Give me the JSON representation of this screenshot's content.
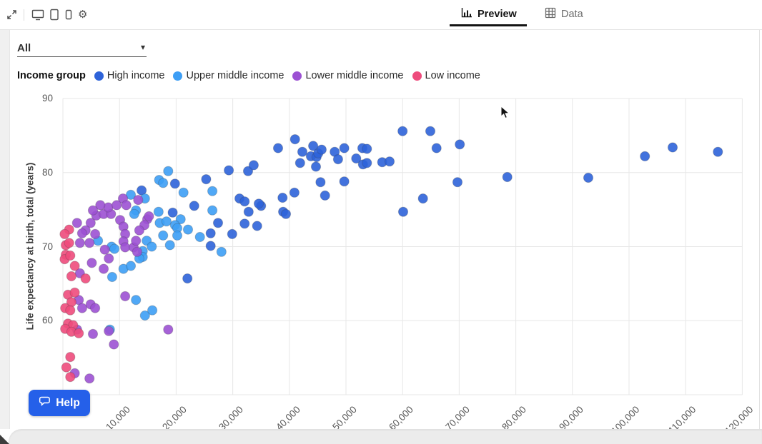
{
  "toolbar": {
    "icons": [
      {
        "name": "expand-icon"
      },
      {
        "name": "desktop-preview-icon"
      },
      {
        "name": "tablet-preview-icon"
      },
      {
        "name": "mobile-preview-icon"
      },
      {
        "name": "settings-gear-icon"
      }
    ],
    "tabs": {
      "preview": {
        "label": "Preview",
        "active": true
      },
      "data": {
        "label": "Data",
        "active": false
      }
    }
  },
  "filter": {
    "value": "All"
  },
  "legend": {
    "title": "Income group",
    "items": [
      {
        "label": "High income",
        "color": "#2e63d9"
      },
      {
        "label": "Upper middle income",
        "color": "#3d9ef5"
      },
      {
        "label": "Lower middle income",
        "color": "#9c51d3"
      },
      {
        "label": "Low income",
        "color": "#ee4b7c"
      }
    ]
  },
  "help": {
    "label": "Help"
  },
  "chart_data": {
    "type": "scatter",
    "title": "",
    "xlabel": "",
    "ylabel": "Life expectancy at birth, total (years)",
    "xlim": [
      0,
      120000
    ],
    "ylim": [
      50,
      90
    ],
    "x_grid_step": 10000,
    "y_grid_step": 10,
    "grid": true,
    "legend_position": "top",
    "x_tick_labels": [
      {
        "value": 10000,
        "label": "10,000"
      },
      {
        "value": 20000,
        "label": "20,000"
      },
      {
        "value": 30000,
        "label": "30,000"
      },
      {
        "value": 40000,
        "label": "40,000"
      },
      {
        "value": 50000,
        "label": "50,000"
      },
      {
        "value": 60000,
        "label": "60,000"
      },
      {
        "value": 70000,
        "label": "70,000"
      },
      {
        "value": 80000,
        "label": "80,000"
      },
      {
        "value": 90000,
        "label": "90,000"
      },
      {
        "value": 100000,
        "label": "100,000"
      },
      {
        "value": 110000,
        "label": "110,000"
      },
      {
        "value": 120000,
        "label": "120,000"
      }
    ],
    "y_tick_labels": [
      {
        "value": 90,
        "label": "90"
      },
      {
        "value": 80,
        "label": "80"
      },
      {
        "value": 70,
        "label": "70"
      },
      {
        "value": 60,
        "label": "60"
      }
    ],
    "series": [
      {
        "name": "High income",
        "color": "#2e63d9",
        "points": [
          [
            78500,
            79.4
          ],
          [
            92800,
            79.3
          ],
          [
            102800,
            82.2
          ],
          [
            107700,
            83.4
          ],
          [
            115700,
            82.8
          ],
          [
            32700,
            80.2
          ],
          [
            33700,
            81.0
          ],
          [
            38000,
            83.3
          ],
          [
            41000,
            84.5
          ],
          [
            42300,
            82.8
          ],
          [
            44200,
            83.6
          ],
          [
            43800,
            82.2
          ],
          [
            44800,
            82.1
          ],
          [
            45100,
            82.6
          ],
          [
            45700,
            83.1
          ],
          [
            41900,
            81.3
          ],
          [
            44700,
            80.8
          ],
          [
            48000,
            82.8
          ],
          [
            48600,
            81.8
          ],
          [
            49700,
            83.3
          ],
          [
            51800,
            81.9
          ],
          [
            52900,
            83.3
          ],
          [
            53700,
            83.2
          ],
          [
            53000,
            81.1
          ],
          [
            53700,
            81.3
          ],
          [
            56400,
            81.4
          ],
          [
            57700,
            81.5
          ],
          [
            60000,
            85.6
          ],
          [
            64900,
            85.6
          ],
          [
            66000,
            83.3
          ],
          [
            70100,
            83.8
          ],
          [
            69700,
            78.7
          ],
          [
            45500,
            78.7
          ],
          [
            49700,
            78.8
          ],
          [
            46300,
            76.9
          ],
          [
            63600,
            76.5
          ],
          [
            60100,
            74.7
          ],
          [
            35000,
            75.5
          ],
          [
            38800,
            76.6
          ],
          [
            40900,
            77.3
          ],
          [
            38900,
            74.7
          ],
          [
            39400,
            74.4
          ],
          [
            34300,
            72.8
          ],
          [
            19800,
            78.5
          ],
          [
            13900,
            77.6
          ],
          [
            25300,
            79.1
          ],
          [
            29300,
            80.3
          ],
          [
            23200,
            75.5
          ],
          [
            19400,
            74.6
          ],
          [
            27400,
            73.2
          ],
          [
            26100,
            71.8
          ],
          [
            26100,
            70.1
          ],
          [
            29900,
            71.7
          ],
          [
            31200,
            76.5
          ],
          [
            32100,
            76.1
          ],
          [
            34600,
            75.8
          ],
          [
            32800,
            74.7
          ],
          [
            32100,
            73.1
          ],
          [
            22000,
            65.7
          ]
        ]
      },
      {
        "name": "Upper middle income",
        "color": "#3d9ef5",
        "points": [
          [
            18600,
            80.2
          ],
          [
            17000,
            79.0
          ],
          [
            17700,
            78.6
          ],
          [
            14500,
            76.5
          ],
          [
            21300,
            77.3
          ],
          [
            20800,
            73.7
          ],
          [
            19800,
            72.9
          ],
          [
            20200,
            72.5
          ],
          [
            26400,
            74.9
          ],
          [
            24200,
            71.3
          ],
          [
            28000,
            69.3
          ],
          [
            18900,
            70.2
          ],
          [
            12000,
            77.0
          ],
          [
            12900,
            74.9
          ],
          [
            16900,
            74.7
          ],
          [
            6200,
            70.8
          ],
          [
            8600,
            70.0
          ],
          [
            9100,
            69.7
          ],
          [
            14100,
            69.4
          ],
          [
            10700,
            67.0
          ],
          [
            12000,
            67.4
          ],
          [
            14100,
            68.6
          ],
          [
            8700,
            65.9
          ],
          [
            12900,
            62.8
          ],
          [
            14500,
            60.7
          ],
          [
            15800,
            61.4
          ],
          [
            8300,
            58.8
          ],
          [
            17100,
            73.2
          ],
          [
            18300,
            73.4
          ],
          [
            14800,
            70.8
          ],
          [
            15700,
            70.0
          ],
          [
            17700,
            71.5
          ],
          [
            20200,
            71.5
          ],
          [
            22100,
            72.3
          ],
          [
            13500,
            68.4
          ],
          [
            26400,
            77.5
          ],
          [
            12600,
            74.4
          ]
        ]
      },
      {
        "name": "Lower middle income",
        "color": "#9c51d3",
        "points": [
          [
            14900,
            73.7
          ],
          [
            10600,
            76.5
          ],
          [
            13300,
            76.3
          ],
          [
            15200,
            74.1
          ],
          [
            5900,
            74.2
          ],
          [
            7200,
            74.4
          ],
          [
            8500,
            74.4
          ],
          [
            4900,
            73.2
          ],
          [
            10100,
            73.6
          ],
          [
            4000,
            72.2
          ],
          [
            3400,
            71.8
          ],
          [
            10700,
            72.7
          ],
          [
            11000,
            71.7
          ],
          [
            4700,
            70.5
          ],
          [
            7400,
            69.6
          ],
          [
            10700,
            70.7
          ],
          [
            11000,
            69.9
          ],
          [
            12500,
            69.9
          ],
          [
            13100,
            69.3
          ],
          [
            8100,
            68.4
          ],
          [
            5100,
            67.8
          ],
          [
            7200,
            67.0
          ],
          [
            3000,
            70.5
          ],
          [
            3000,
            66.4
          ],
          [
            2800,
            62.8
          ],
          [
            3400,
            61.7
          ],
          [
            4900,
            62.2
          ],
          [
            5700,
            61.7
          ],
          [
            2500,
            58.8
          ],
          [
            5300,
            58.2
          ],
          [
            8100,
            58.6
          ],
          [
            9000,
            56.8
          ],
          [
            2100,
            52.9
          ],
          [
            4700,
            52.2
          ],
          [
            11000,
            63.3
          ],
          [
            12900,
            70.8
          ],
          [
            5700,
            71.7
          ],
          [
            2500,
            73.2
          ],
          [
            8000,
            75.3
          ],
          [
            6600,
            75.6
          ],
          [
            5300,
            74.9
          ],
          [
            9500,
            75.6
          ],
          [
            11200,
            75.6
          ],
          [
            14400,
            72.9
          ],
          [
            13500,
            72.2
          ],
          [
            18600,
            58.8
          ]
        ]
      },
      {
        "name": "Low income",
        "color": "#ee4b7c",
        "points": [
          [
            2100,
            67.4
          ],
          [
            1500,
            66.0
          ],
          [
            4000,
            65.7
          ],
          [
            900,
            63.5
          ],
          [
            2100,
            63.8
          ],
          [
            1500,
            62.5
          ],
          [
            400,
            61.7
          ],
          [
            1300,
            61.4
          ],
          [
            900,
            59.6
          ],
          [
            1800,
            59.4
          ],
          [
            400,
            58.9
          ],
          [
            1500,
            58.5
          ],
          [
            2800,
            58.3
          ],
          [
            1300,
            55.1
          ],
          [
            600,
            53.7
          ],
          [
            1300,
            52.4
          ],
          [
            1100,
            72.3
          ],
          [
            300,
            71.7
          ],
          [
            500,
            70.2
          ],
          [
            1100,
            70.5
          ],
          [
            500,
            68.9
          ],
          [
            300,
            68.3
          ],
          [
            1300,
            68.8
          ]
        ]
      }
    ]
  }
}
